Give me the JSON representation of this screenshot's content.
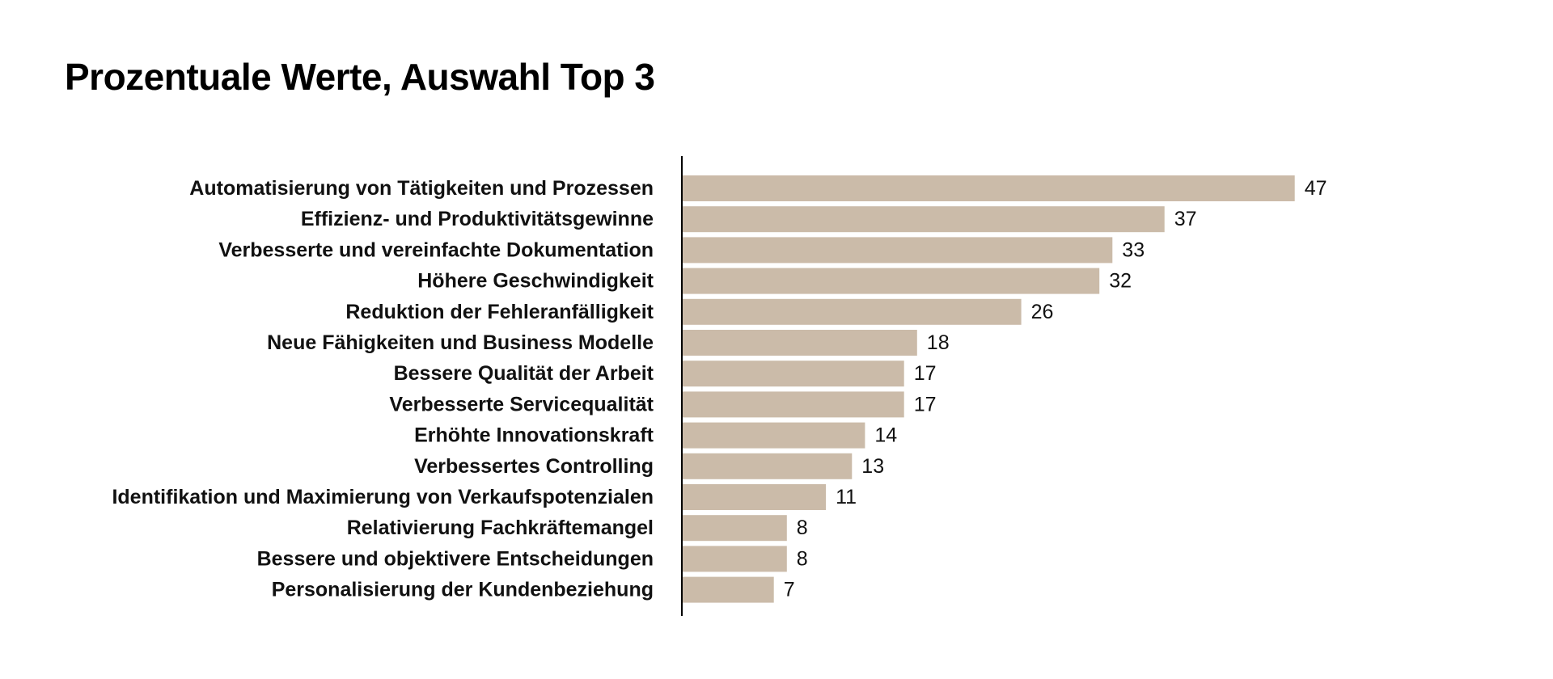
{
  "chart_data": {
    "type": "bar",
    "orientation": "horizontal",
    "title": "Prozentuale Werte, Auswahl Top 3",
    "xlabel": "",
    "ylabel": "",
    "xlim": [
      0,
      50
    ],
    "grid": false,
    "legend": "none",
    "bar_color": "#cbbba9",
    "axis_color": "#000000",
    "categories": [
      "Automatisierung von Tätigkeiten und Prozessen",
      "Effizienz- und Produktivitätsgewinne",
      "Verbesserte und vereinfachte Dokumentation",
      "Höhere Geschwindigkeit",
      "Reduktion der Fehleranfälligkeit",
      "Neue Fähigkeiten und Business Modelle",
      "Bessere Qualität der Arbeit",
      "Verbesserte Servicequalität",
      "Erhöhte Innovationskraft",
      "Verbessertes Controlling",
      "Identifikation und Maximierung von Verkaufspotenzialen",
      "Relativierung Fachkräftemangel",
      "Bessere und objektivere Entscheidungen",
      "Personalisierung der Kundenbeziehung"
    ],
    "values": [
      47,
      37,
      33,
      32,
      26,
      18,
      17,
      17,
      14,
      13,
      11,
      8,
      8,
      7
    ]
  }
}
